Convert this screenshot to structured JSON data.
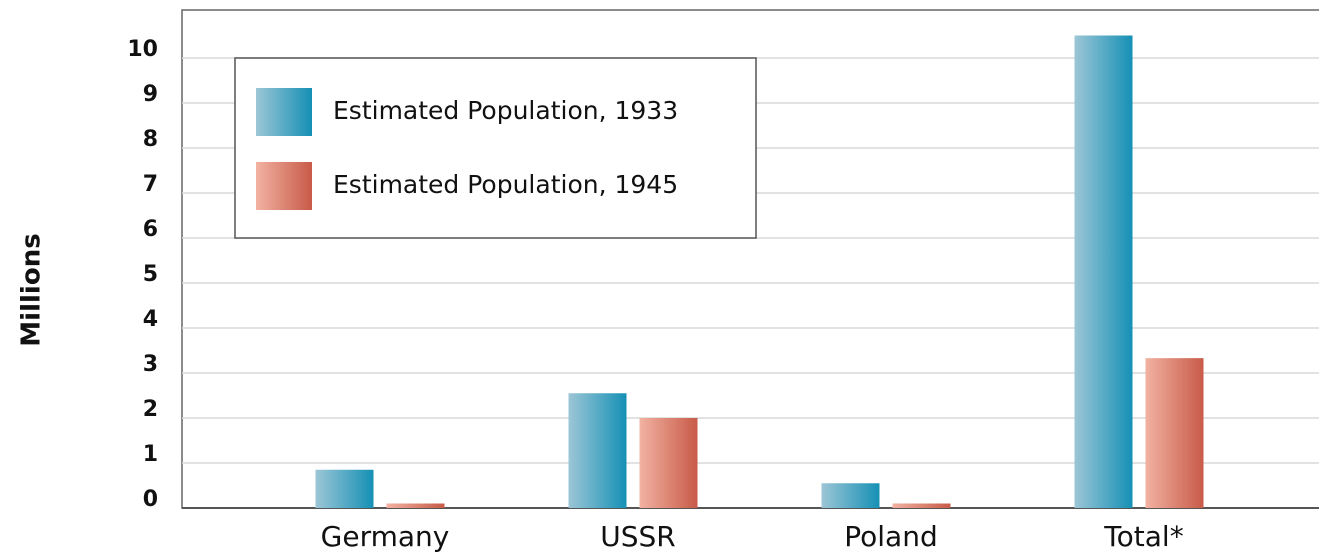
{
  "chart_data": {
    "type": "bar",
    "y_label": "Millions",
    "categories": [
      "Germany",
      "USSR",
      "Poland",
      "Total*"
    ],
    "series": [
      {
        "name": "Estimated Population, 1933",
        "color": "#1590b5",
        "values": [
          0.85,
          2.55,
          0.55,
          10.5
        ]
      },
      {
        "name": "Estimated Population, 1945",
        "color": "#c85a48",
        "values": [
          0.1,
          2.0,
          0.1,
          3.33
        ]
      }
    ],
    "ylim": [
      0,
      11
    ],
    "yticks": [
      0,
      1,
      2,
      3,
      4,
      5,
      6,
      7,
      8,
      9,
      10
    ],
    "grid": true
  }
}
